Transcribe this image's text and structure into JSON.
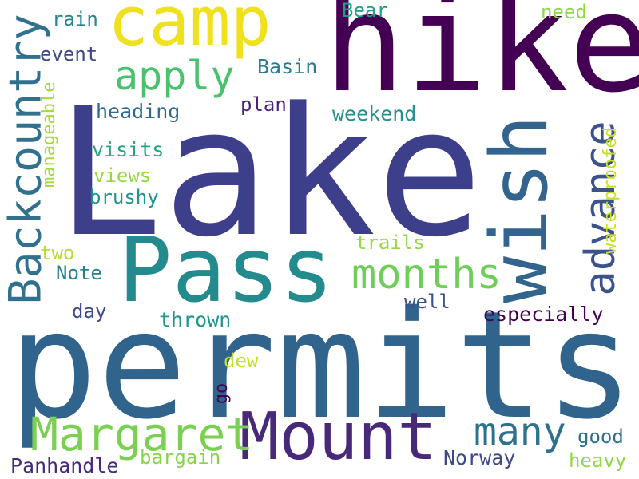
{
  "colors": {
    "c1": "#440154",
    "c2": "#482878",
    "c3": "#3e4989",
    "c4": "#31688e",
    "c5": "#26828e",
    "c6": "#1f9e89",
    "c7": "#35b779",
    "c8": "#6ece58",
    "c9": "#b5de2b",
    "c10": "#fde725"
  },
  "words": {
    "lake": "Lake",
    "permits": "permits",
    "hike": "hike",
    "pass": "Pass",
    "mount": "Mount",
    "camp": "camp",
    "wish": "wish",
    "backcountry": "Backcountry",
    "margaret": "Margaret",
    "months": "months",
    "advance": "advance",
    "apply": "apply",
    "many": "many",
    "waterproofed": "waterproofed",
    "panhandle": "Panhandle",
    "norway": "Norway",
    "especially": "especially",
    "bargain": "bargain",
    "good": "good",
    "heavy": "heavy",
    "manageable": "manageable",
    "basin": "Basin",
    "bear": "Bear",
    "need": "need",
    "rain": "rain",
    "event": "event",
    "heading": "heading",
    "plan": "plan",
    "weekend": "weekend",
    "visits": "visits",
    "views": "views",
    "brushy": "brushy",
    "two": "two",
    "note": "Note",
    "trails": "trails",
    "well": "well",
    "day": "day",
    "thrown": "thrown",
    "dew": "dew",
    "go": "go"
  }
}
